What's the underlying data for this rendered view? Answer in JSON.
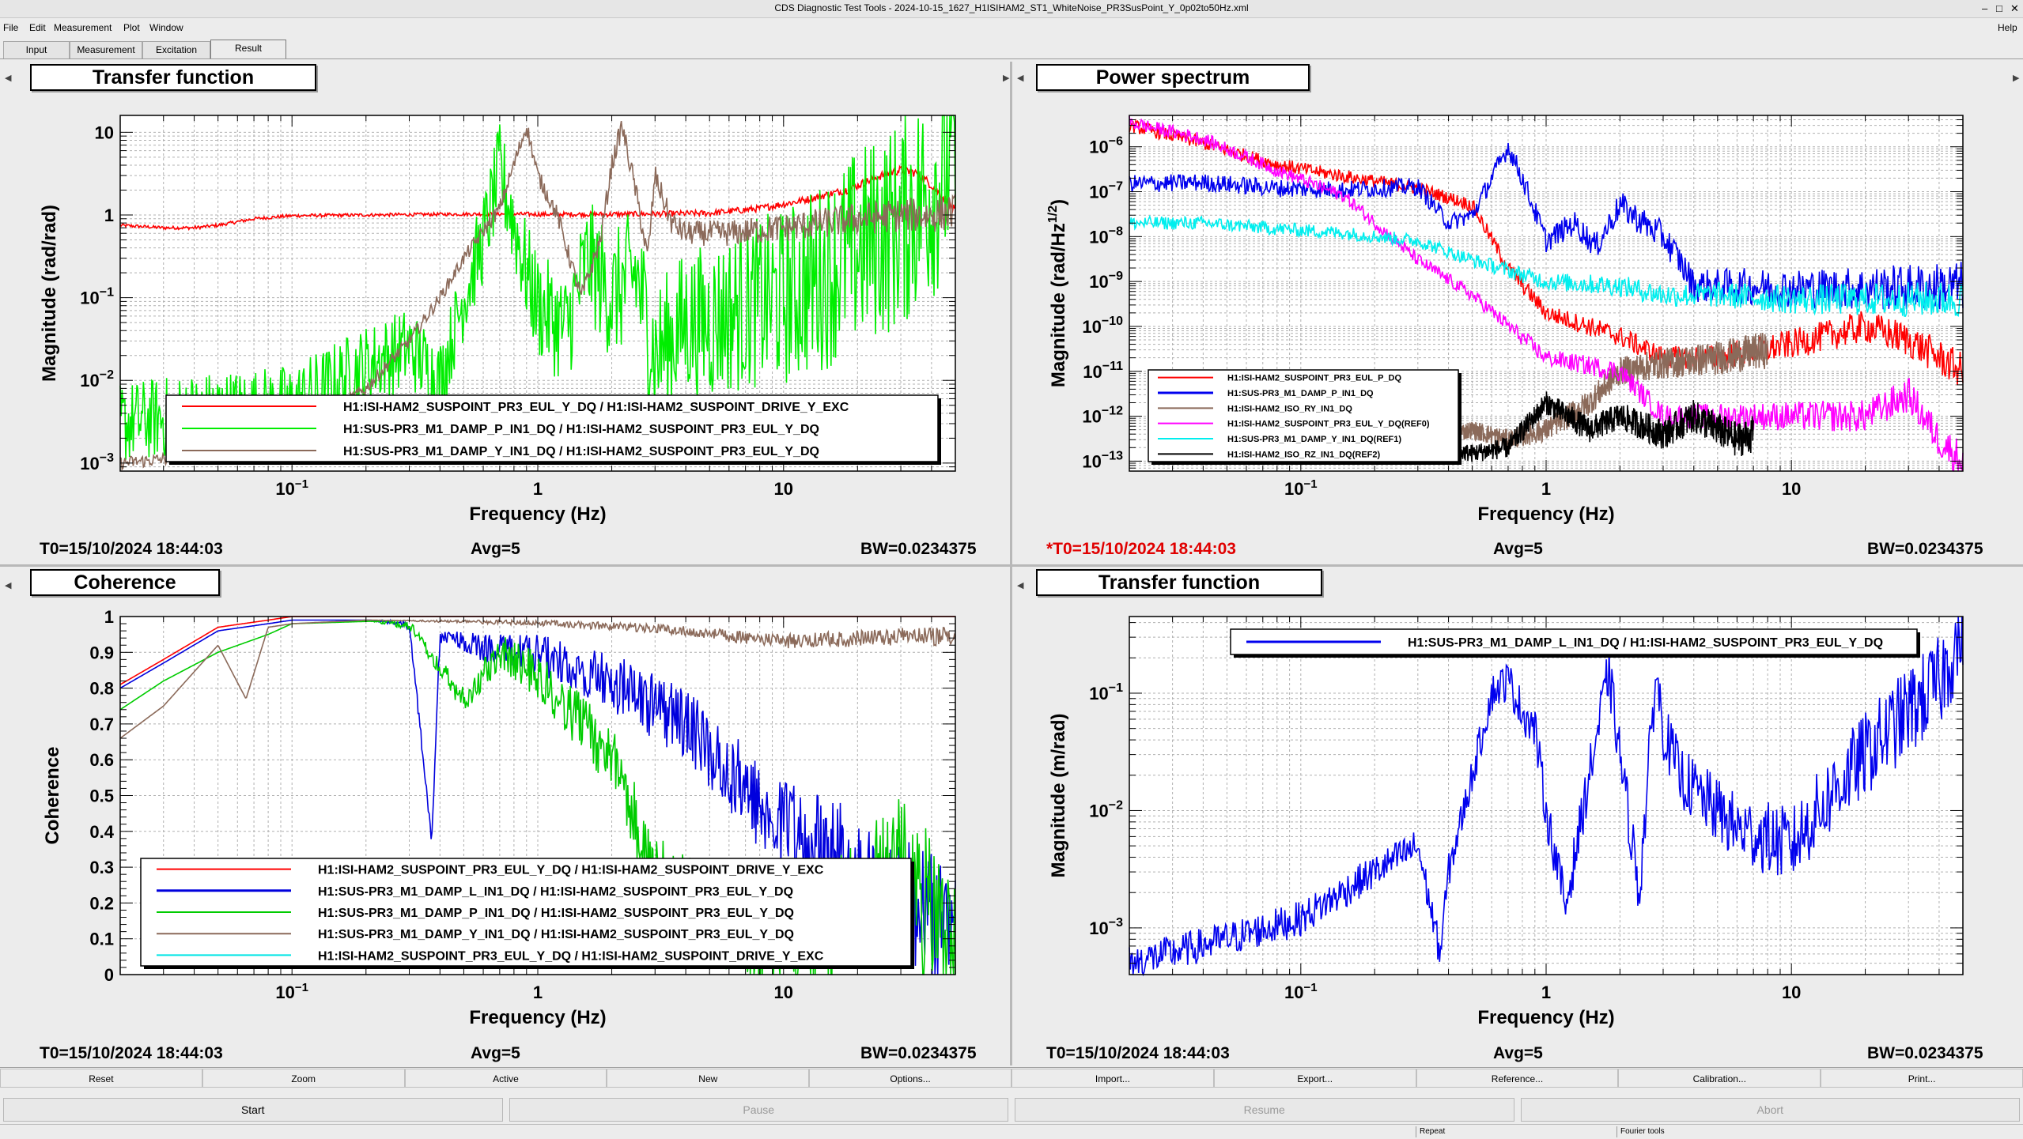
{
  "window": {
    "title": "CDS Diagnostic Test Tools - 2024-10-15_1627_H1ISIHAM2_ST1_WhiteNoise_PR3SusPoint_Y_0p02to50Hz.xml",
    "controls": {
      "minimize": "–",
      "maximize": "□",
      "close": "✕"
    }
  },
  "menu": {
    "file": "File",
    "edit": "Edit",
    "measurement": "Measurement",
    "plot": "Plot",
    "window": "Window",
    "help": "Help"
  },
  "tabs": [
    "Input",
    "Measurement",
    "Excitation",
    "Result"
  ],
  "active_tab": "Result",
  "panels": {
    "tl": {
      "title": "Transfer function",
      "t0": "T0=15/10/2024 18:44:03",
      "avg": "Avg=5",
      "bw": "BW=0.0234375",
      "t0_modified": false
    },
    "tr": {
      "title": "Power spectrum",
      "t0": "*T0=15/10/2024 18:44:03",
      "avg": "Avg=5",
      "bw": "BW=0.0234375",
      "t0_modified": true
    },
    "bl": {
      "title": "Coherence",
      "t0": "T0=15/10/2024 18:44:03",
      "avg": "Avg=5",
      "bw": "BW=0.0234375",
      "t0_modified": false
    },
    "br": {
      "title": "Transfer function",
      "t0": "T0=15/10/2024 18:44:03",
      "avg": "Avg=5",
      "bw": "BW=0.0234375",
      "t0_modified": false
    }
  },
  "buttons_row1": [
    "Reset",
    "Zoom",
    "Active",
    "New",
    "Options...",
    "Import...",
    "Export...",
    "Reference...",
    "Calibration...",
    "Print..."
  ],
  "buttons_row2": [
    {
      "label": "Start",
      "enabled": true
    },
    {
      "label": "Pause",
      "enabled": false
    },
    {
      "label": "Resume",
      "enabled": false
    },
    {
      "label": "Abort",
      "enabled": false
    }
  ],
  "status": {
    "repeat": "Repeat",
    "fourier": "Fourier tools"
  },
  "chart_data": [
    {
      "id": "tl",
      "type": "line",
      "title": "Transfer function",
      "xlabel": "Frequency (Hz)",
      "ylabel": "Magnitude (rad/rad)",
      "xscale": "log",
      "yscale": "log",
      "xlim": [
        0.02,
        50
      ],
      "ylim": [
        0.0008,
        16
      ],
      "xticks": [
        0.1,
        1,
        10
      ],
      "yticks": [
        0.001,
        0.01,
        0.1,
        1,
        10
      ],
      "grid": true,
      "legend": "bottom",
      "series": [
        {
          "name": "H1:ISI-HAM2_SUSPOINT_PR3_EUL_Y_DQ / H1:ISI-HAM2_SUSPOINT_DRIVE_Y_EXC",
          "color": "#ff0000",
          "noise": 0.02,
          "x": [
            0.02,
            0.03,
            0.04,
            0.05,
            0.07,
            0.1,
            0.2,
            0.4,
            0.7,
            1,
            2,
            3,
            5,
            8,
            12,
            18,
            25,
            30,
            35,
            40,
            45,
            50
          ],
          "y": [
            0.75,
            0.7,
            0.7,
            0.75,
            0.9,
            0.98,
            1.0,
            1.02,
            1.03,
            1.02,
            1.02,
            1.03,
            1.05,
            1.2,
            1.5,
            2.0,
            3.0,
            3.5,
            3.2,
            2.3,
            1.6,
            1.1
          ]
        },
        {
          "name": "H1:SUS-PR3_M1_DAMP_P_IN1_DQ / H1:ISI-HAM2_SUSPOINT_PR3_EUL_Y_DQ",
          "color": "#00ee00",
          "noise": 0.5,
          "x": [
            0.02,
            0.04,
            0.1,
            0.2,
            0.3,
            0.4,
            0.5,
            0.6,
            0.7,
            0.8,
            0.9,
            1,
            1.3,
            1.6,
            2,
            2.5,
            3,
            4,
            5,
            7,
            10,
            15,
            20,
            30,
            40,
            50
          ],
          "y": [
            0.003,
            0.004,
            0.005,
            0.015,
            0.025,
            0.01,
            0.1,
            0.5,
            3.5,
            0.8,
            0.2,
            0.08,
            0.04,
            0.3,
            0.1,
            0.2,
            0.02,
            0.05,
            0.05,
            0.08,
            0.1,
            0.2,
            0.4,
            0.8,
            2,
            6
          ]
        },
        {
          "name": "H1:SUS-PR3_M1_DAMP_Y_IN1_DQ / H1:ISI-HAM2_SUSPOINT_PR3_EUL_Y_DQ",
          "color": "#8b6a5a",
          "noise": 0.08,
          "x": [
            0.02,
            0.04,
            0.1,
            0.2,
            0.3,
            0.4,
            0.5,
            0.7,
            0.9,
            1,
            1.2,
            1.5,
            1.8,
            2,
            2.2,
            2.5,
            2.8,
            3,
            3.5,
            4,
            6,
            10,
            20,
            30,
            40,
            50
          ],
          "y": [
            0.001,
            0.0012,
            0.002,
            0.008,
            0.03,
            0.1,
            0.3,
            1.2,
            12,
            3,
            1,
            0.1,
            0.5,
            4,
            12,
            2,
            0.3,
            3,
            0.8,
            0.6,
            0.6,
            0.7,
            0.9,
            1.0,
            1.0,
            1.1
          ]
        }
      ]
    },
    {
      "id": "tr",
      "type": "line",
      "title": "Power spectrum",
      "xlabel": "Frequency (Hz)",
      "ylabel": "Magnitude (rad/Hz^1/2)",
      "xscale": "log",
      "yscale": "log",
      "xlim": [
        0.02,
        50
      ],
      "ylim": [
        6e-14,
        5e-06
      ],
      "xticks": [
        0.1,
        1,
        10
      ],
      "yticks": [
        1e-13,
        1e-12,
        1e-11,
        1e-10,
        1e-09,
        1e-08,
        1e-07,
        1e-06
      ],
      "grid": true,
      "legend": "bottom-left",
      "series": [
        {
          "name": "H1:ISI-HAM2_SUSPOINT_PR3_EUL_P_DQ",
          "color": "#ff0000",
          "noise": 0.15,
          "x": [
            0.02,
            0.04,
            0.08,
            0.15,
            0.3,
            0.5,
            0.7,
            1,
            1.5,
            2,
            3,
            5,
            10,
            20,
            30,
            40,
            50
          ],
          "y": [
            3e-06,
            1.2e-06,
            4e-07,
            2.2e-07,
            1.2e-07,
            5e-08,
            2e-09,
            2e-10,
            1e-10,
            6e-11,
            2e-11,
            2e-11,
            4e-11,
            1e-10,
            5e-11,
            2e-11,
            1e-11
          ]
        },
        {
          "name": "H1:SUS-PR3_M1_DAMP_P_IN1_DQ",
          "color": "#0000ee",
          "noise": 0.2,
          "x": [
            0.02,
            0.04,
            0.08,
            0.15,
            0.3,
            0.4,
            0.5,
            0.6,
            0.7,
            0.8,
            1,
            1.3,
            1.6,
            2,
            2.5,
            3,
            3.5,
            4,
            6,
            10,
            20,
            50
          ],
          "y": [
            1.5e-07,
            1.6e-07,
            1.2e-07,
            1.1e-07,
            1.3e-07,
            2e-08,
            3e-08,
            2e-07,
            1e-06,
            2e-07,
            8e-09,
            2e-08,
            6e-09,
            5e-08,
            2e-08,
            1e-08,
            3e-09,
            8e-10,
            8e-10,
            7e-10,
            7e-10,
            8e-10
          ]
        },
        {
          "name": "H1:ISI-HAM2_ISO_RY_IN1_DQ",
          "color": "#8b6a5a",
          "noise": 0.2,
          "x": [
            0.3,
            0.5,
            0.7,
            1,
            1.5,
            2,
            3,
            5,
            8
          ],
          "y": [
            3e-13,
            5e-13,
            3e-13,
            5e-13,
            2e-12,
            1e-11,
            1.5e-11,
            2e-11,
            3e-11
          ]
        },
        {
          "name": "H1:ISI-HAM2_SUSPOINT_PR3_EUL_Y_DQ(REF0)",
          "color": "#ff00ff",
          "noise": 0.15,
          "x": [
            0.02,
            0.04,
            0.08,
            0.15,
            0.3,
            0.5,
            1,
            2,
            3,
            5,
            10,
            20,
            30,
            40,
            50
          ],
          "y": [
            3.5e-06,
            1.5e-06,
            3e-07,
            8e-08,
            3e-09,
            5e-10,
            2e-11,
            1e-11,
            1e-12,
            1e-12,
            1e-12,
            1e-12,
            3e-12,
            3e-13,
            1e-13
          ]
        },
        {
          "name": "H1:SUS-PR3_M1_DAMP_Y_IN1_DQ(REF1)",
          "color": "#00eeee",
          "noise": 0.15,
          "x": [
            0.02,
            0.04,
            0.08,
            0.15,
            0.3,
            0.5,
            1,
            2,
            3,
            5,
            10,
            20,
            50
          ],
          "y": [
            2e-08,
            2e-08,
            1.5e-08,
            1.2e-08,
            8e-09,
            3e-09,
            1e-09,
            8e-10,
            5e-10,
            5e-10,
            4e-10,
            4e-10,
            4e-10
          ]
        },
        {
          "name": "H1:ISI-HAM2_ISO_RZ_IN1_DQ(REF2)",
          "color": "#000000",
          "noise": 0.2,
          "x": [
            0.3,
            0.5,
            0.7,
            1,
            1.5,
            2,
            3,
            4,
            6,
            7
          ],
          "y": [
            2e-13,
            1.5e-13,
            2e-13,
            2e-12,
            5e-13,
            1e-12,
            4e-13,
            1e-12,
            3e-13,
            4e-13
          ]
        }
      ]
    },
    {
      "id": "bl",
      "type": "line",
      "title": "Coherence",
      "xlabel": "Frequency (Hz)",
      "ylabel": "Coherence",
      "xscale": "log",
      "yscale": "linear",
      "xlim": [
        0.02,
        50
      ],
      "ylim": [
        0,
        1
      ],
      "xticks": [
        0.1,
        1,
        10
      ],
      "yticks": [
        0,
        0.1,
        0.2,
        0.3,
        0.4,
        0.5,
        0.6,
        0.7,
        0.8,
        0.9,
        1
      ],
      "grid": true,
      "legend": "bottom",
      "series": [
        {
          "name": "H1:ISI-HAM2_SUSPOINT_PR3_EUL_Y_DQ / H1:ISI-HAM2_SUSPOINT_DRIVE_Y_EXC",
          "color": "#ff0000",
          "noise": 0,
          "x": [
            0.02,
            0.03,
            0.05,
            0.08,
            0.1,
            0.2,
            1,
            10,
            50
          ],
          "y": [
            0.81,
            0.88,
            0.97,
            0.99,
            1,
            1,
            1,
            1,
            1
          ]
        },
        {
          "name": "H1:SUS-PR3_M1_DAMP_L_IN1_DQ / H1:ISI-HAM2_SUSPOINT_PR3_EUL_Y_DQ",
          "color": "#0000dd",
          "noise": 0.35,
          "x": [
            0.02,
            0.03,
            0.05,
            0.08,
            0.1,
            0.3,
            0.37,
            0.4,
            0.6,
            1,
            2,
            4,
            8,
            15,
            30,
            50
          ],
          "y": [
            0.8,
            0.87,
            0.96,
            0.98,
            0.99,
            0.99,
            0.4,
            0.97,
            0.95,
            0.95,
            0.9,
            0.8,
            0.6,
            0.5,
            0.4,
            0.3
          ]
        },
        {
          "name": "H1:SUS-PR3_M1_DAMP_P_IN1_DQ / H1:ISI-HAM2_SUSPOINT_PR3_EUL_Y_DQ",
          "color": "#00cc00",
          "noise": 0.4,
          "x": [
            0.02,
            0.03,
            0.05,
            0.08,
            0.1,
            0.3,
            0.5,
            0.7,
            1,
            2,
            3,
            5,
            8,
            15,
            30,
            50
          ],
          "y": [
            0.74,
            0.82,
            0.9,
            0.95,
            0.98,
            0.99,
            0.8,
            0.95,
            0.9,
            0.7,
            0.4,
            0.3,
            0.2,
            0.3,
            0.5,
            0.3
          ]
        },
        {
          "name": "H1:SUS-PR3_M1_DAMP_Y_IN1_DQ / H1:ISI-HAM2_SUSPOINT_PR3_EUL_Y_DQ",
          "color": "#8b6a5a",
          "noise": 0.05,
          "x": [
            0.02,
            0.03,
            0.05,
            0.065,
            0.08,
            0.1,
            0.2,
            0.4,
            1,
            3,
            10,
            30,
            50
          ],
          "y": [
            0.66,
            0.75,
            0.92,
            0.77,
            0.97,
            0.98,
            0.99,
            0.99,
            0.99,
            0.98,
            0.95,
            0.97,
            0.97
          ]
        },
        {
          "name": "H1:ISI-HAM2_SUSPOINT_PR3_EUL_Y_DQ / H1:ISI-HAM2_SUSPOINT_DRIVE_Y_EXC",
          "color": "#00e5e5",
          "noise": 0,
          "x": [],
          "y": []
        }
      ]
    },
    {
      "id": "br",
      "type": "line",
      "title": "Transfer function",
      "xlabel": "Frequency (Hz)",
      "ylabel": "Magnitude (m/rad)",
      "xscale": "log",
      "yscale": "log",
      "xlim": [
        0.02,
        50
      ],
      "ylim": [
        0.0004,
        0.45
      ],
      "xticks": [
        0.1,
        1,
        10
      ],
      "yticks": [
        0.001,
        0.01,
        0.1
      ],
      "grid": true,
      "legend": "top-right",
      "series": [
        {
          "name": "H1:SUS-PR3_M1_DAMP_L_IN1_DQ / H1:ISI-HAM2_SUSPOINT_PR3_EUL_Y_DQ",
          "color": "#0000ee",
          "noise": 0.15,
          "x": [
            0.02,
            0.05,
            0.1,
            0.2,
            0.3,
            0.37,
            0.4,
            0.5,
            0.6,
            0.7,
            0.8,
            0.9,
            1,
            1.2,
            1.5,
            1.8,
            2,
            2.4,
            2.8,
            3,
            3.5,
            4,
            6,
            10,
            15,
            20,
            30,
            40,
            50
          ],
          "y": [
            0.0005,
            0.0008,
            0.0012,
            0.003,
            0.005,
            0.0006,
            0.003,
            0.02,
            0.1,
            0.13,
            0.07,
            0.05,
            0.01,
            0.0015,
            0.02,
            0.15,
            0.03,
            0.002,
            0.15,
            0.05,
            0.02,
            0.015,
            0.007,
            0.005,
            0.015,
            0.03,
            0.07,
            0.12,
            0.35
          ]
        }
      ]
    }
  ]
}
